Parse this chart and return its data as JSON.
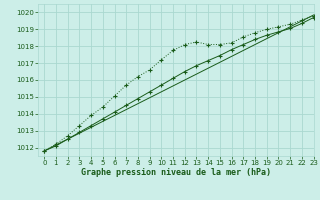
{
  "title": "Graphe pression niveau de la mer (hPa)",
  "bg_color": "#cceee8",
  "grid_color": "#aad8d0",
  "line_color": "#1a5c1a",
  "xlim": [
    -0.5,
    23
  ],
  "ylim": [
    1011.5,
    1020.5
  ],
  "yticks": [
    1012,
    1013,
    1014,
    1015,
    1016,
    1017,
    1018,
    1019,
    1020
  ],
  "xticks": [
    0,
    1,
    2,
    3,
    4,
    5,
    6,
    7,
    8,
    9,
    10,
    11,
    12,
    13,
    14,
    15,
    16,
    17,
    18,
    19,
    20,
    21,
    22,
    23
  ],
  "series_linear": [
    1011.8,
    1012.15,
    1012.5,
    1012.85,
    1013.2,
    1013.55,
    1013.9,
    1014.25,
    1014.6,
    1014.95,
    1015.3,
    1015.65,
    1016.0,
    1016.35,
    1016.7,
    1017.05,
    1017.4,
    1017.75,
    1018.1,
    1018.45,
    1018.8,
    1019.15,
    1019.5,
    1019.85
  ],
  "series_upper": [
    1011.8,
    1012.2,
    1012.7,
    1013.3,
    1013.9,
    1014.4,
    1015.05,
    1015.7,
    1016.2,
    1016.6,
    1017.2,
    1017.75,
    1018.1,
    1018.25,
    1018.1,
    1018.1,
    1018.2,
    1018.55,
    1018.8,
    1019.0,
    1019.15,
    1019.3,
    1019.55,
    1019.8
  ],
  "series_lower": [
    1011.8,
    1012.1,
    1012.5,
    1012.9,
    1013.3,
    1013.7,
    1014.1,
    1014.5,
    1014.9,
    1015.3,
    1015.7,
    1016.1,
    1016.5,
    1016.85,
    1017.15,
    1017.45,
    1017.8,
    1018.1,
    1018.4,
    1018.65,
    1018.85,
    1019.05,
    1019.35,
    1019.7
  ]
}
